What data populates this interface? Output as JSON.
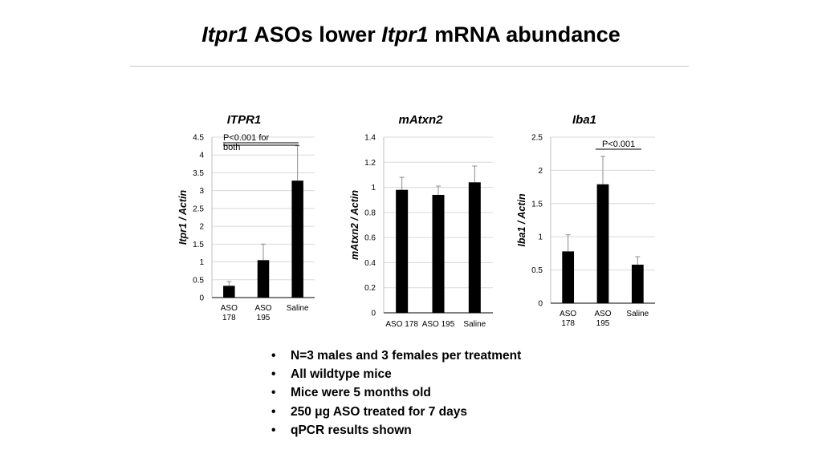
{
  "slide": {
    "title_parts": [
      "Itpr1",
      " ASOs lower ",
      "Itpr1",
      " mRNA abundance"
    ],
    "bullets": [
      "N=3 males and 3 females per treatment",
      "All wildtype mice",
      "Mice were 5 months old",
      "250 μg ASO treated for 7 days",
      "qPCR results shown"
    ],
    "bullet_glyph": "•"
  },
  "chart_data": [
    {
      "type": "bar",
      "title": "ITPR1",
      "ylabel": "Itpr1 / Actin",
      "xlabel": "",
      "categories": [
        [
          "ASO",
          "178"
        ],
        [
          "ASO",
          "195"
        ],
        [
          "Saline"
        ]
      ],
      "values": [
        0.33,
        1.05,
        3.28
      ],
      "errors": [
        0.12,
        0.45,
        0.98
      ],
      "ylim": [
        0,
        4.5
      ],
      "yticks": [
        "0",
        "0.5",
        "1",
        "1.5",
        "2",
        "2.5",
        "3",
        "3.5",
        "4",
        "4.5"
      ],
      "grid": true,
      "annotation": [
        "P<0.001 for",
        "both"
      ],
      "bar_color": "#000000",
      "grid_color": "#d9d9d9"
    },
    {
      "type": "bar",
      "title": "mAtxn2",
      "ylabel": "mAtxn2 / Actin",
      "xlabel": "",
      "categories": [
        [
          "ASO 178"
        ],
        [
          "ASO 195"
        ],
        [
          "Saline"
        ]
      ],
      "values": [
        0.98,
        0.94,
        1.04
      ],
      "errors": [
        0.1,
        0.07,
        0.13
      ],
      "ylim": [
        0,
        1.4
      ],
      "yticks": [
        "0",
        "0.2",
        "0.4",
        "0.6",
        "0.8",
        "1",
        "1.2",
        "1.4"
      ],
      "grid": true,
      "annotation": [],
      "bar_color": "#000000",
      "grid_color": "#d9d9d9"
    },
    {
      "type": "bar",
      "title": "Iba1",
      "ylabel": "Iba1 / Actin",
      "xlabel": "",
      "categories": [
        [
          "ASO",
          "178"
        ],
        [
          "ASO",
          "195"
        ],
        [
          "Saline"
        ]
      ],
      "values": [
        0.78,
        1.79,
        0.58
      ],
      "errors": [
        0.25,
        0.42,
        0.12
      ],
      "ylim": [
        0,
        2.5
      ],
      "yticks": [
        "0",
        "0.5",
        "1",
        "1.5",
        "2",
        "2.5"
      ],
      "grid": true,
      "annotation": [
        "P<0.001"
      ],
      "bar_color": "#000000",
      "grid_color": "#d9d9d9"
    }
  ]
}
